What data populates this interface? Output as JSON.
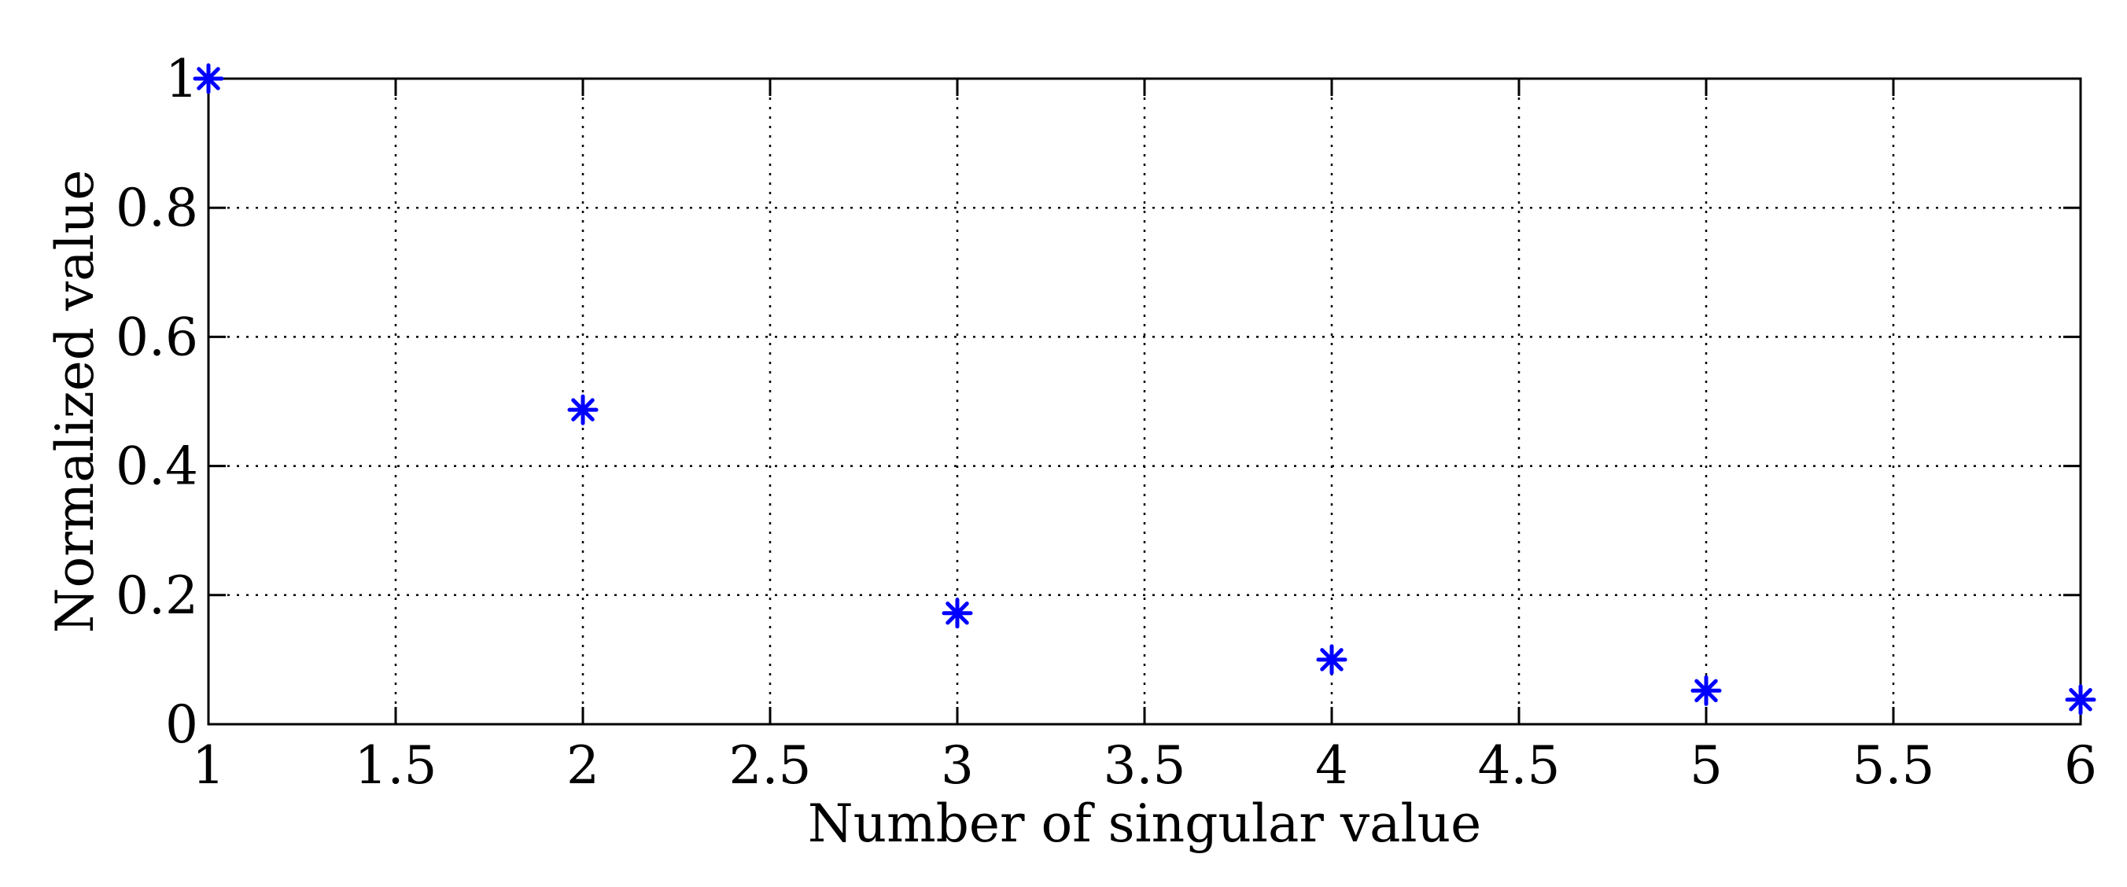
{
  "chart_data": {
    "type": "scatter",
    "title": "",
    "xlabel": "Number of singular value",
    "ylabel": "Normalized value",
    "xlim": [
      1,
      6
    ],
    "ylim": [
      0,
      1
    ],
    "grid": true,
    "marker": "asterisk",
    "color": "#0000ff",
    "x_ticks": [
      1,
      1.5,
      2,
      2.5,
      3,
      3.5,
      4,
      4.5,
      5,
      5.5,
      6
    ],
    "x_tick_labels": [
      "1",
      "1.5",
      "2",
      "2.5",
      "3",
      "3.5",
      "4",
      "4.5",
      "5",
      "5.5",
      "6"
    ],
    "y_ticks": [
      0,
      0.2,
      0.4,
      0.6,
      0.8,
      1
    ],
    "y_tick_labels": [
      "0",
      "0.2",
      "0.4",
      "0.6",
      "0.8",
      "1"
    ],
    "series": [
      {
        "x": [
          1,
          2,
          3,
          4,
          5,
          6
        ],
        "y": [
          1.0,
          0.487,
          0.172,
          0.1,
          0.052,
          0.038
        ]
      }
    ]
  }
}
